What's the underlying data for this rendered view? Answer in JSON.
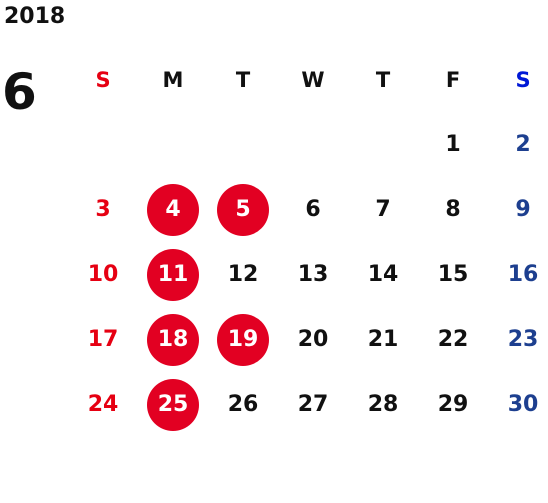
{
  "calendar": {
    "year": "2018",
    "month": "6",
    "weekdays": [
      "S",
      "M",
      "T",
      "W",
      "T",
      "F",
      "S"
    ],
    "first_weekday_index": 5,
    "days": [
      "1",
      "2",
      "3",
      "4",
      "5",
      "6",
      "7",
      "8",
      "9",
      "10",
      "11",
      "12",
      "13",
      "14",
      "15",
      "16",
      "17",
      "18",
      "19",
      "20",
      "21",
      "22",
      "23",
      "24",
      "25",
      "26",
      "27",
      "28",
      "29",
      "30"
    ],
    "highlighted_days": [
      "4",
      "5",
      "11",
      "18",
      "19",
      "25"
    ]
  },
  "colors": {
    "sunday": "#e60012",
    "saturday_header": "#0018d6",
    "saturday": "#1d3f8f",
    "weekday": "#111111",
    "highlight_bg": "#e20022",
    "highlight_text": "#ffffff"
  }
}
